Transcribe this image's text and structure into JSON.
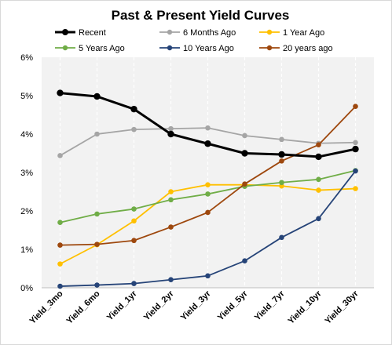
{
  "chart_data": {
    "type": "line",
    "title": "Past & Present Yield Curves",
    "xlabel": "",
    "ylabel": "",
    "categories": [
      "Yield_3mo",
      "Yield_6mo",
      "Yield_1yr",
      "Yield_2yr",
      "Yield_3yr",
      "Yield_5yr",
      "Yield_7yr",
      "Yield_10yr",
      "Yield_30yr"
    ],
    "ylim": [
      0,
      6
    ],
    "yticks": [
      "0%",
      "1%",
      "2%",
      "3%",
      "4%",
      "5%",
      "6%"
    ],
    "grid": "vertical dashed",
    "legend_position": "top",
    "series": [
      {
        "name": "Recent",
        "color": "#000000",
        "values": [
          5.07,
          4.98,
          4.65,
          4.0,
          3.75,
          3.5,
          3.47,
          3.41,
          3.61
        ]
      },
      {
        "name": "6 Months Ago",
        "color": "#a5a5a5",
        "values": [
          3.44,
          4.0,
          4.12,
          4.14,
          4.16,
          3.96,
          3.86,
          3.76,
          3.78
        ]
      },
      {
        "name": "1 Year Ago",
        "color": "#ffc000",
        "values": [
          0.62,
          1.12,
          1.74,
          2.5,
          2.68,
          2.68,
          2.65,
          2.54,
          2.58
        ]
      },
      {
        "name": "5 Years Ago",
        "color": "#70ad47",
        "values": [
          1.7,
          1.92,
          2.05,
          2.29,
          2.44,
          2.64,
          2.74,
          2.82,
          3.05
        ]
      },
      {
        "name": "10 Years Ago",
        "color": "#264478",
        "values": [
          0.04,
          0.07,
          0.11,
          0.21,
          0.31,
          0.7,
          1.31,
          1.8,
          3.04
        ]
      },
      {
        "name": "20 years ago",
        "color": "#9e480e",
        "values": [
          1.11,
          1.13,
          1.23,
          1.58,
          1.96,
          2.7,
          3.3,
          3.72,
          4.72
        ]
      }
    ]
  }
}
